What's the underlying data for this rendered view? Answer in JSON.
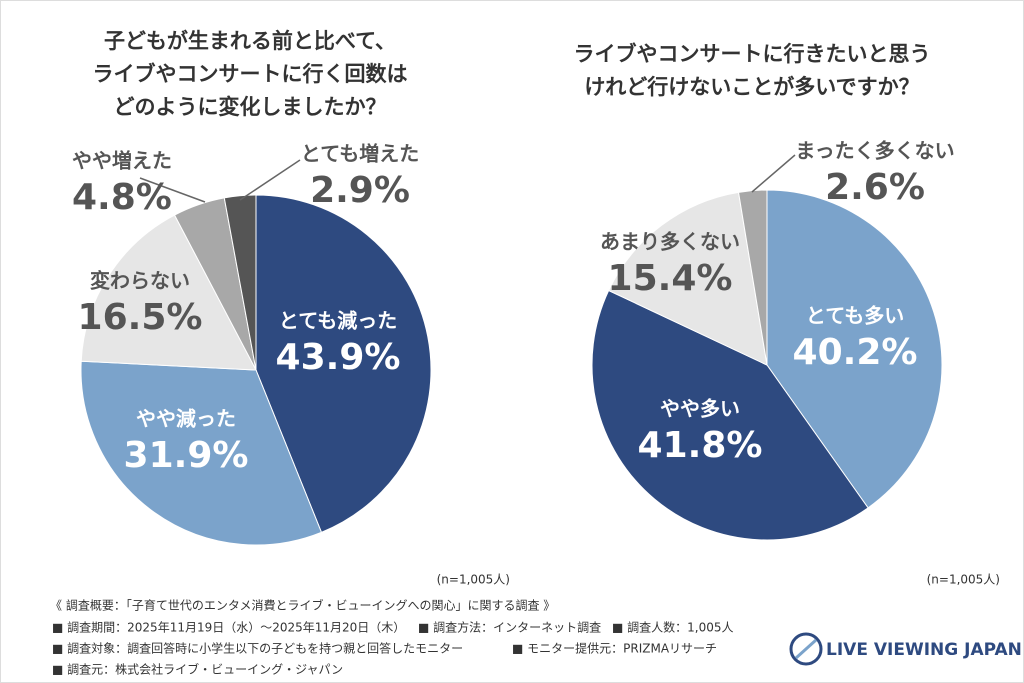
{
  "chart_data": [
    {
      "type": "pie",
      "title": [
        "子どもが生まれる前と比べて、",
        "ライブやコンサートに行く回数は",
        "どのように変化しましたか？"
      ],
      "categories": [
        "とても減った",
        "やや減った",
        "変わらない",
        "やや増えた",
        "とても増えた"
      ],
      "values": [
        43.9,
        31.9,
        16.5,
        4.8,
        2.9
      ],
      "value_labels": [
        "43.9%",
        "31.9%",
        "16.5%",
        "4.8%",
        "2.9%"
      ],
      "colors": [
        "#2e4a80",
        "#7ba3cb",
        "#e6e6e6",
        "#a8a8a8",
        "#555555"
      ],
      "note": "(n=1,005人)"
    },
    {
      "type": "pie",
      "title": [
        "ライブやコンサートに行きたいと思う",
        "けれど行けないことが多いですか？"
      ],
      "categories": [
        "とても多い",
        "やや多い",
        "あまり多くない",
        "まったく多くない"
      ],
      "values": [
        40.2,
        41.8,
        15.4,
        2.6
      ],
      "value_labels": [
        "40.2%",
        "41.8%",
        "15.4%",
        "2.6%"
      ],
      "colors": [
        "#7ba3cb",
        "#2e4a80",
        "#e6e6e6",
        "#a8a8a8"
      ],
      "note": "(n=1,005人)"
    }
  ],
  "footer": {
    "heading": "《 調査概要：「子育て世代のエンタメ消費とライブ・ビューイングへの関心」に関する調査 》",
    "items": [
      "■ 調査期間：2025年11月19日（水）～2025年11月20日（木）",
      "■ 調査方法：インターネット調査",
      "■ 調査人数：1,005人",
      "■ 調査対象：調査回答時に小学生以下の子どもを持つ親と回答したモニター",
      "■ モニター提供元：PRIZMAリサーチ",
      "■ 調査元：株式会社ライブ・ビューイング・ジャパン"
    ],
    "logo": "LIVE VIEWING JAPAN"
  }
}
